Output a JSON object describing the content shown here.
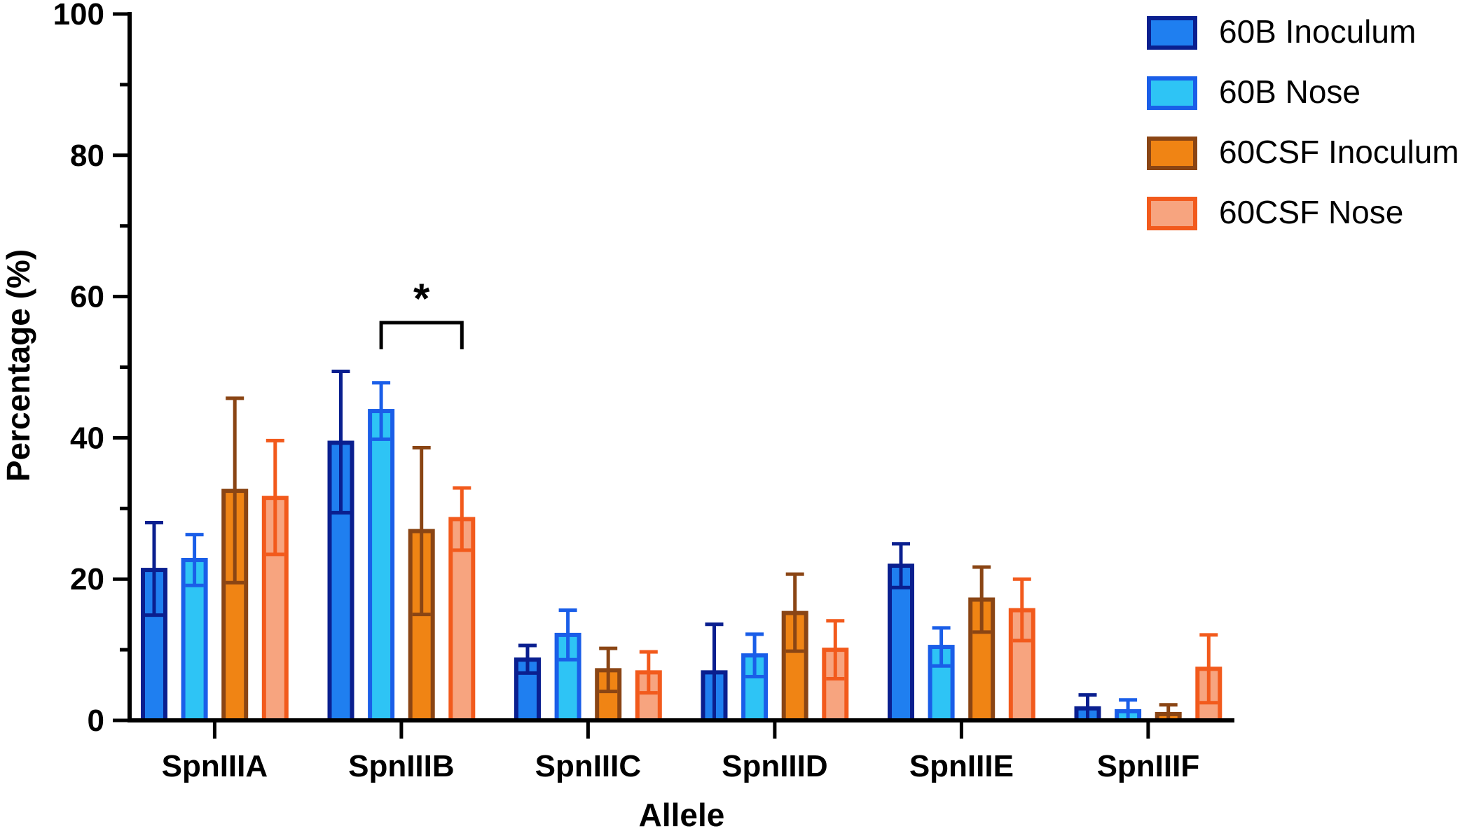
{
  "chart_data": {
    "type": "bar",
    "title": "",
    "xlabel": "Allele",
    "ylabel": "Percentage (%)",
    "ylim": [
      0,
      100
    ],
    "yticks": [
      0,
      20,
      40,
      60,
      80,
      100
    ],
    "categories": [
      "SpnIIIA",
      "SpnIIIB",
      "SpnIIIC",
      "SpnIIID",
      "SpnIIIE",
      "SpnIIIF"
    ],
    "series": [
      {
        "name": "60B Inoculum",
        "fill": "#1f7ff0",
        "stroke": "#0a1f8f",
        "values": [
          21.3,
          39.3,
          8.6,
          6.8,
          21.9,
          1.7
        ],
        "err_upper": [
          28.0,
          49.4,
          10.6,
          13.6,
          25.0,
          3.6
        ],
        "err_lower": [
          14.9,
          29.4,
          6.7,
          0.0,
          18.8,
          0.0
        ]
      },
      {
        "name": "60B Nose",
        "fill": "#2ec4f5",
        "stroke": "#1a5ee8",
        "values": [
          22.7,
          43.8,
          12.1,
          9.2,
          10.4,
          1.3
        ],
        "err_upper": [
          26.3,
          47.8,
          15.6,
          12.2,
          13.1,
          2.9
        ],
        "err_lower": [
          19.1,
          39.8,
          8.6,
          6.2,
          7.7,
          0.0
        ]
      },
      {
        "name": "60CSF Inoculum",
        "fill": "#f08414",
        "stroke": "#8a4514",
        "values": [
          32.5,
          26.8,
          7.1,
          15.2,
          17.1,
          0.9
        ],
        "err_upper": [
          45.6,
          38.6,
          10.2,
          20.7,
          21.7,
          2.2
        ],
        "err_lower": [
          19.5,
          15.0,
          4.1,
          9.8,
          12.5,
          0.0
        ]
      },
      {
        "name": "60CSF Nose",
        "fill": "#f7a47f",
        "stroke": "#f25a1c",
        "values": [
          31.5,
          28.5,
          6.8,
          10.0,
          15.6,
          7.3
        ],
        "err_upper": [
          39.6,
          32.9,
          9.7,
          14.1,
          20.0,
          12.1
        ],
        "err_lower": [
          23.5,
          24.1,
          3.9,
          5.9,
          11.3,
          2.5
        ]
      }
    ],
    "annotations": [
      {
        "text": "*",
        "category": "SpnIIIB",
        "from_series": 1,
        "to_series": 3,
        "level": 56.3
      }
    ],
    "legend_position": "top-right"
  }
}
